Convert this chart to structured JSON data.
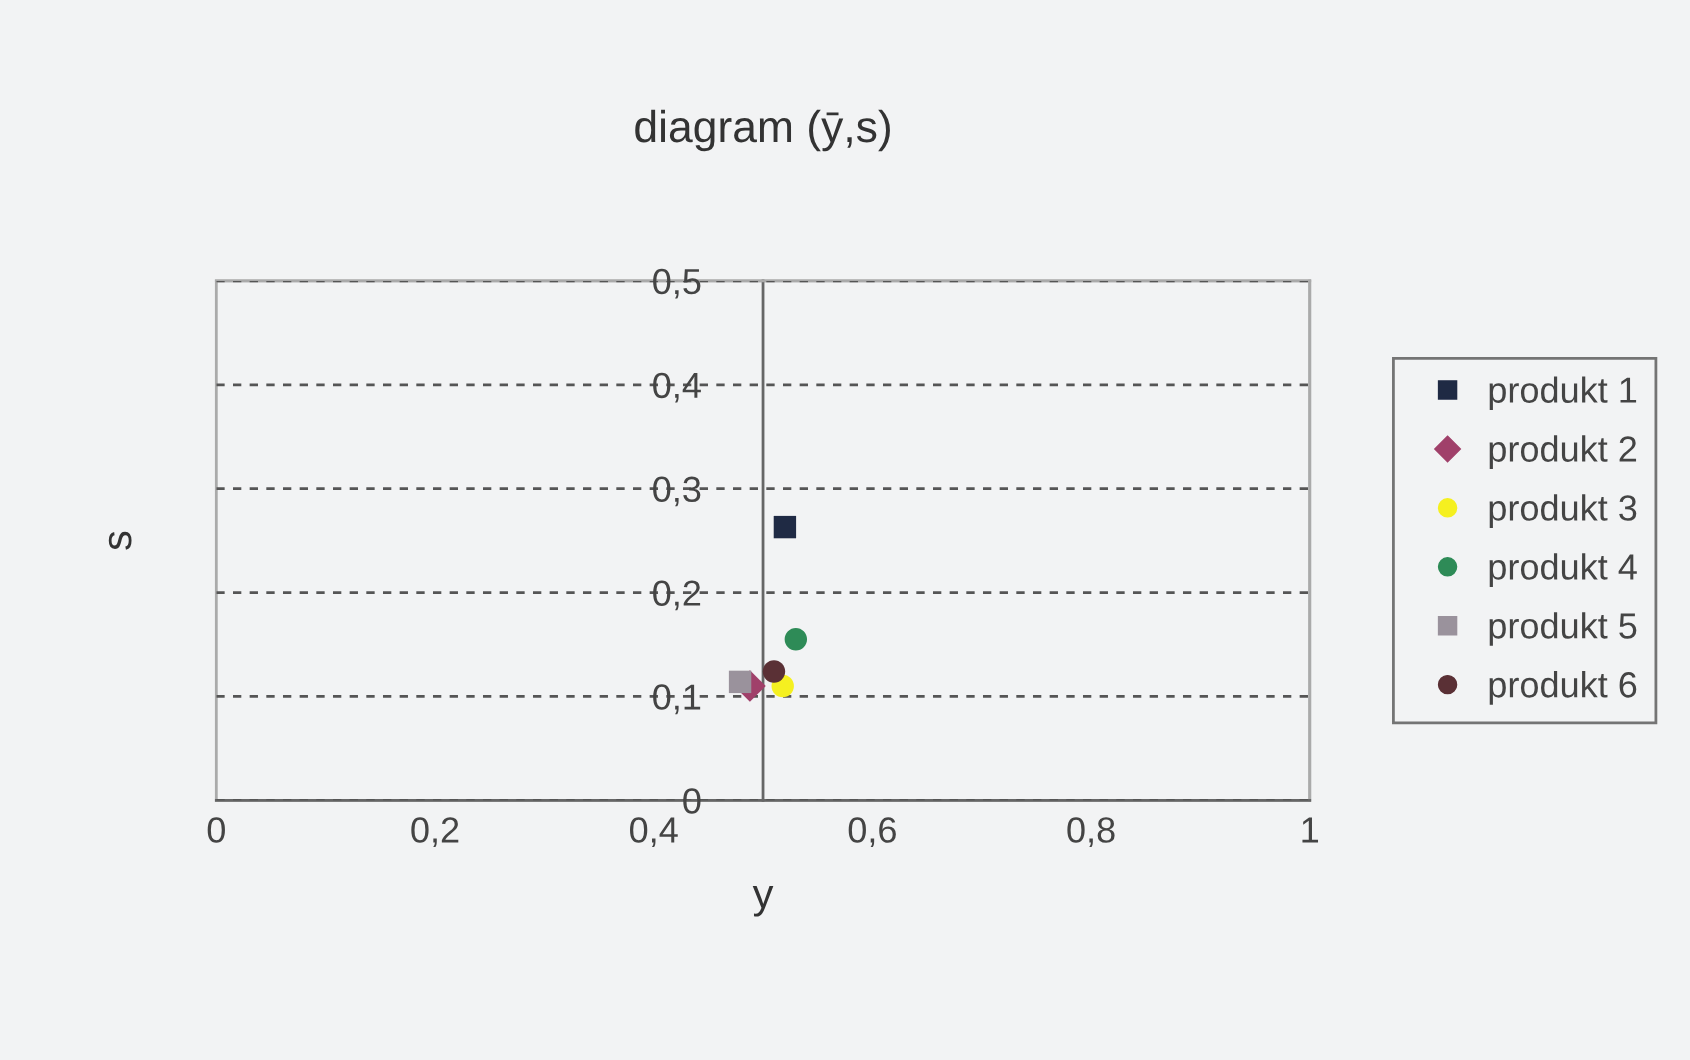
{
  "chart_data": {
    "type": "scatter",
    "title": "diagram (ȳ,s)",
    "xlabel": "y",
    "ylabel": "s",
    "series": [
      {
        "name": "produkt 1",
        "color": "#1f2a44",
        "marker": "square",
        "x": [
          0.52
        ],
        "values": [
          0.263
        ]
      },
      {
        "name": "produkt 2",
        "color": "#a0406a",
        "marker": "diamond",
        "x": [
          0.488
        ],
        "values": [
          0.11
        ]
      },
      {
        "name": "produkt 3",
        "color": "#f5f020",
        "marker": "circle",
        "x": [
          0.518
        ],
        "values": [
          0.11
        ]
      },
      {
        "name": "produkt 4",
        "color": "#2e8b57",
        "marker": "circle",
        "x": [
          0.53
        ],
        "values": [
          0.155
        ]
      },
      {
        "name": "produkt 5",
        "color": "#9a929c",
        "marker": "square",
        "x": [
          0.479
        ],
        "values": [
          0.114
        ]
      },
      {
        "name": "produkt 6",
        "color": "#5a3035",
        "marker": "circle",
        "x": [
          0.51
        ],
        "values": [
          0.124
        ]
      }
    ],
    "xlim": [
      0,
      1
    ],
    "xticks": [
      0,
      {
        "value": 0.2,
        "label": "0,2"
      },
      {
        "value": 0.4,
        "label": "0,4"
      },
      {
        "value": 0.6,
        "label": "0,6"
      },
      {
        "value": 0.8,
        "label": "0,8"
      },
      1
    ],
    "ylim": [
      0,
      0.5
    ],
    "yticks": [
      0,
      {
        "value": 0.1,
        "label": "0,1"
      },
      {
        "value": 0.2,
        "label": "0,2"
      },
      {
        "value": 0.3,
        "label": "0,3"
      },
      {
        "value": 0.4,
        "label": "0,4"
      },
      {
        "value": 0.5,
        "label": "0,5"
      }
    ],
    "grid": "y",
    "legend": "right"
  }
}
